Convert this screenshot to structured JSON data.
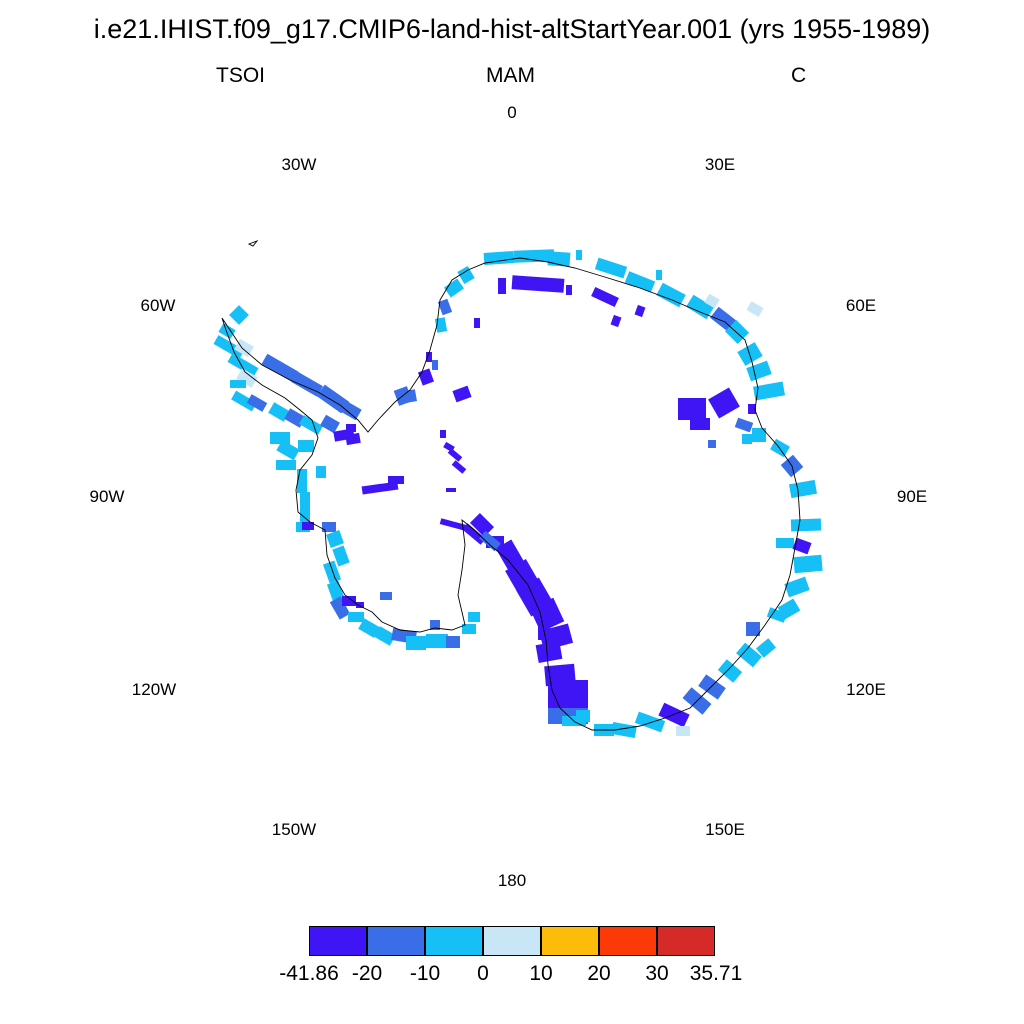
{
  "title": "i.e21.IHIST.f09_g17.CMIP6-land-hist-altStartYear.001 (yrs 1955-1989)",
  "subtitle_left": "TSOI",
  "subtitle_center": "MAM",
  "subtitle_right": "C",
  "longitude_labels": [
    "0",
    "30E",
    "60E",
    "90E",
    "120E",
    "150E",
    "180",
    "150W",
    "120W",
    "90W",
    "60W",
    "30W"
  ],
  "colorbar": {
    "colors": [
      "#4015f5",
      "#3a6ee8",
      "#16bff5",
      "#c8e6f6",
      "#fdbb0a",
      "#fb3a08",
      "#d62a28"
    ],
    "labels": [
      "-41.86",
      "-20",
      "-10",
      "0",
      "10",
      "20",
      "30",
      "35.71"
    ]
  },
  "colors": {
    "strong_negative": "#4015f5",
    "negative": "#3a6ee8",
    "weak_negative": "#16bff5",
    "near_zero": "#c8e6f6"
  }
}
